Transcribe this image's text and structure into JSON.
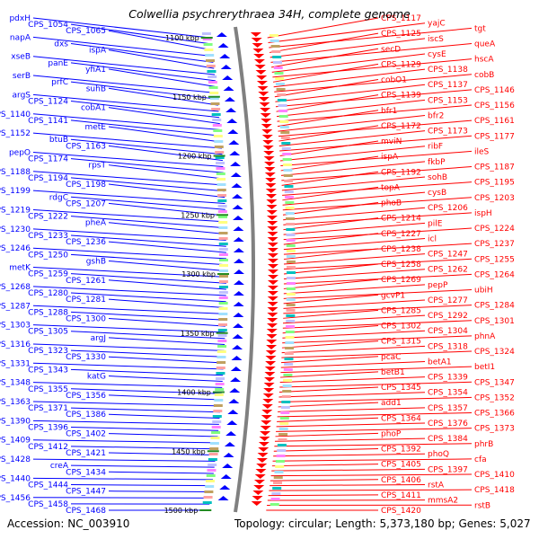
{
  "title": "Colwellia psychrerythraea 34H, complete genome",
  "footer": {
    "accession": "Accession: NC_003910",
    "topology": "Topology: circular; Length: 5,373,180 bp; Genes: 5,027"
  },
  "kbp_marks": [
    "1100 kbp",
    "1150 kbp",
    "1200 kbp",
    "1250 kbp",
    "1300 kbp",
    "1350 kbp",
    "1400 kbp",
    "1450 kbp",
    "1500 kbp"
  ],
  "left_labels": [
    "pdxH",
    "CPS_1054",
    "CPS_1065",
    "napA",
    "dxs",
    "ispA",
    "xseB",
    "panE",
    "yfiA1",
    "serB",
    "prfC",
    "suhB",
    "argS",
    "CPS_1124",
    "cobA1",
    "CPS_1140",
    "CPS_1141",
    "metE",
    "CPS_1152",
    "btuB",
    "CPS_1163",
    "pepO",
    "CPS_1174",
    "rpsT",
    "CPS_1188",
    "CPS_1194",
    "CPS_1198",
    "CPS_1199",
    "rdgC",
    "CPS_1207",
    "CPS_1219",
    "CPS_1222",
    "pheA",
    "CPS_1230",
    "CPS_1233",
    "CPS_1236",
    "CPS_1246",
    "CPS_1250",
    "gshB",
    "metK",
    "CPS_1259",
    "CPS_1261",
    "CPS_1268",
    "CPS_1280",
    "CPS_1281",
    "CPS_1287",
    "CPS_1288",
    "CPS_1300",
    "CPS_1303",
    "CPS_1305",
    "argJ",
    "CPS_1316",
    "CPS_1323",
    "CPS_1330",
    "CPS_1331",
    "CPS_1343",
    "katG",
    "CPS_1348",
    "CPS_1355",
    "CPS_1356",
    "CPS_1363",
    "CPS_1371",
    "CPS_1386",
    "CPS_1390",
    "CPS_1396",
    "CPS_1402",
    "CPS_1409",
    "CPS_1412",
    "CPS_1421",
    "CPS_1428",
    "creA",
    "CPS_1434",
    "CPS_1440",
    "CPS_1444",
    "CPS_1447",
    "CPS_1456",
    "CPS_1458",
    "CPS_1468"
  ],
  "right_labels": [
    "CPS_1117",
    "yajC",
    "tgt",
    "CPS_1125",
    "iscS",
    "queA",
    "secD",
    "cysE",
    "hscA",
    "CPS_1129",
    "CPS_1138",
    "cobB",
    "cobO1",
    "CPS_1137",
    "CPS_1146",
    "CPS_1139",
    "CPS_1153",
    "CPS_1156",
    "bfr1",
    "bfr2",
    "CPS_1161",
    "CPS_1172",
    "CPS_1173",
    "CPS_1177",
    "mviN",
    "ribF",
    "ileS",
    "ispA",
    "fkbP",
    "CPS_1187",
    "CPS_1192",
    "sohB",
    "CPS_1195",
    "topA",
    "cysB",
    "CPS_1203",
    "phoB",
    "CPS_1206",
    "ispH",
    "CPS_1214",
    "pilE",
    "CPS_1224",
    "CPS_1227",
    "icl",
    "CPS_1237",
    "CPS_1238",
    "CPS_1247",
    "CPS_1255",
    "CPS_1258",
    "CPS_1262",
    "CPS_1264",
    "CPS_1269",
    "pepP",
    "ubiH",
    "gcvP1",
    "CPS_1277",
    "CPS_1284",
    "CPS_1285",
    "CPS_1292",
    "CPS_1301",
    "CPS_1302",
    "CPS_1304",
    "phnA",
    "CPS_1315",
    "CPS_1318",
    "CPS_1324",
    "pcaC",
    "betA1",
    "betI1",
    "betB1",
    "CPS_1339",
    "CPS_1347",
    "CPS_1345",
    "CPS_1354",
    "CPS_1352",
    "add1",
    "CPS_1357",
    "CPS_1366",
    "CPS_1364",
    "CPS_1376",
    "CPS_1373",
    "phoP",
    "CPS_1384",
    "phrB",
    "CPS_1392",
    "phoQ",
    "cfa",
    "CPS_1405",
    "CPS_1397",
    "CPS_1410",
    "CPS_1406",
    "rstA",
    "CPS_1418",
    "CPS_1411",
    "mmsA2",
    "rstB",
    "CPS_1420"
  ],
  "colors": {
    "forward": "#ff0000",
    "reverse": "#0000ff",
    "backbone": "#808080",
    "tick": "#228b22"
  }
}
